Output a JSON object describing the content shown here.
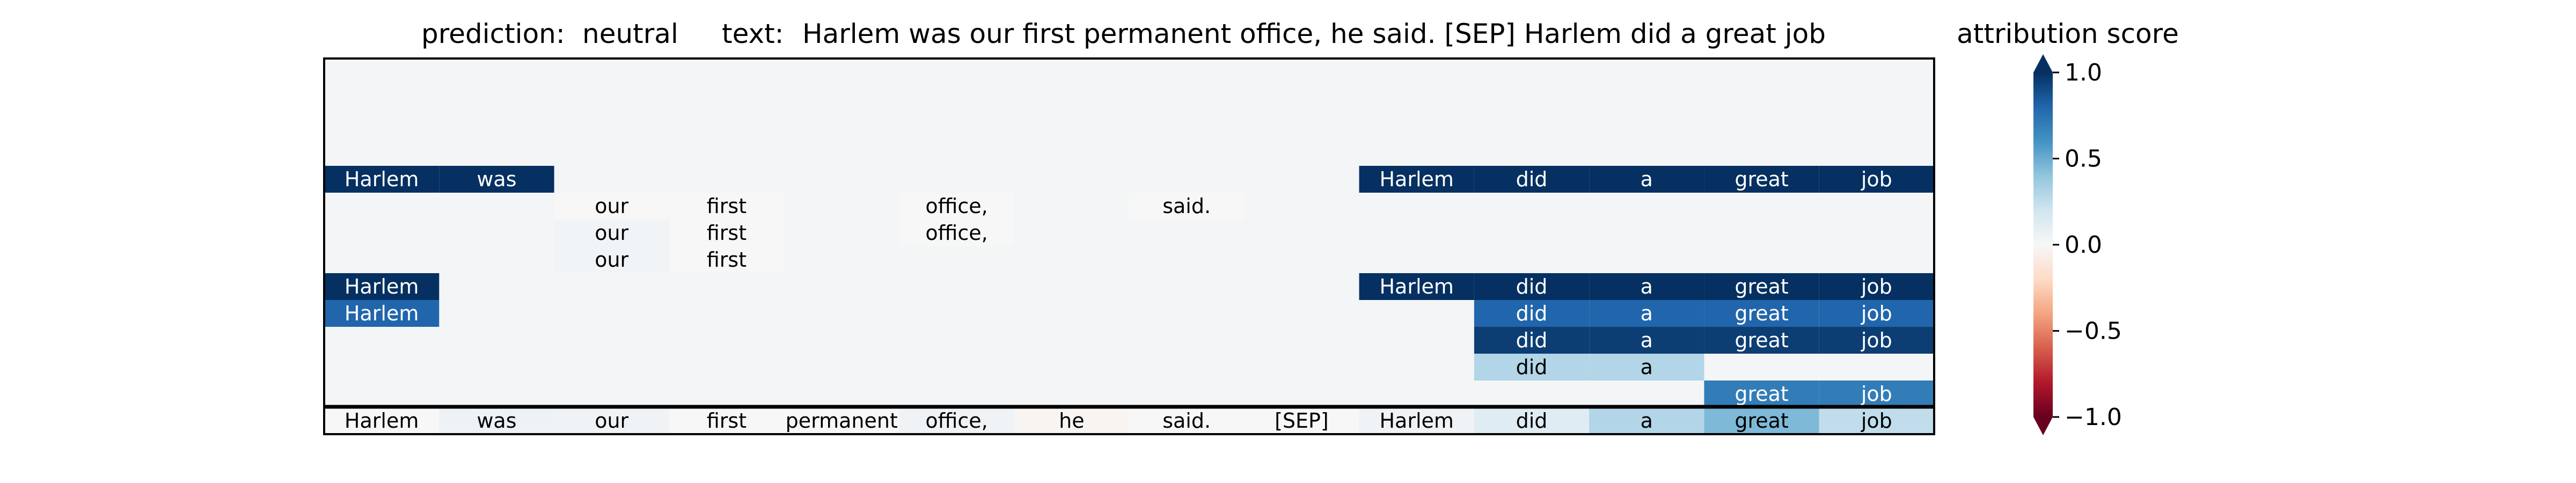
{
  "header": {
    "prediction_label": "prediction:",
    "prediction_value": "neutral",
    "text_label": "text:",
    "text_value": "Harlem was our first permanent office, he said. [SEP] Harlem did a great job"
  },
  "colorbar": {
    "title": "attribution score",
    "ticks": [
      "1.0",
      "0.5",
      "0.0",
      "−0.5",
      "−1.0"
    ],
    "tick_values": [
      1.0,
      0.5,
      0.0,
      -0.5,
      -1.0
    ],
    "colormap": "RdBu",
    "extend": "both"
  },
  "chart_data": {
    "type": "heatmap",
    "title": "attribution score",
    "tokens": [
      "Harlem",
      "was",
      "our",
      "first",
      "permanent",
      "office,",
      "he",
      "said.",
      "[SEP]",
      "Harlem",
      "did",
      "a",
      "great",
      "job"
    ],
    "vmin": -1.0,
    "vmax": 1.0,
    "background_value": 0.02,
    "rows": [
      {
        "values": [
          null,
          null,
          null,
          null,
          null,
          null,
          null,
          null,
          null,
          null,
          null,
          null,
          null,
          null
        ]
      },
      {
        "values": [
          null,
          null,
          null,
          null,
          null,
          null,
          null,
          null,
          null,
          null,
          null,
          null,
          null,
          null
        ]
      },
      {
        "values": [
          null,
          null,
          null,
          null,
          null,
          null,
          null,
          null,
          null,
          null,
          null,
          null,
          null,
          null
        ]
      },
      {
        "values": [
          null,
          null,
          null,
          null,
          null,
          null,
          null,
          null,
          null,
          null,
          null,
          null,
          null,
          null
        ]
      },
      {
        "values": [
          1.0,
          1.0,
          null,
          null,
          null,
          null,
          null,
          null,
          null,
          1.0,
          1.0,
          1.0,
          1.0,
          1.0
        ]
      },
      {
        "values": [
          null,
          null,
          0.0,
          0.0,
          null,
          0.0,
          null,
          0.0,
          null,
          null,
          null,
          null,
          null,
          null
        ]
      },
      {
        "values": [
          null,
          null,
          0.03,
          0.0,
          null,
          0.0,
          null,
          null,
          null,
          null,
          null,
          null,
          null,
          null
        ]
      },
      {
        "values": [
          null,
          null,
          0.03,
          0.0,
          null,
          null,
          null,
          null,
          null,
          null,
          null,
          null,
          null,
          null
        ]
      },
      {
        "values": [
          1.0,
          null,
          null,
          null,
          null,
          null,
          null,
          null,
          null,
          1.0,
          1.0,
          1.0,
          1.0,
          1.0
        ]
      },
      {
        "values": [
          0.8,
          null,
          null,
          null,
          null,
          null,
          null,
          null,
          null,
          null,
          0.8,
          0.8,
          0.8,
          0.8
        ]
      },
      {
        "values": [
          null,
          null,
          null,
          null,
          null,
          null,
          null,
          null,
          null,
          null,
          0.95,
          0.95,
          0.95,
          0.95
        ]
      },
      {
        "values": [
          null,
          null,
          null,
          null,
          null,
          null,
          null,
          null,
          null,
          null,
          0.3,
          0.3,
          null,
          null
        ]
      },
      {
        "values": [
          null,
          null,
          null,
          null,
          null,
          null,
          null,
          null,
          null,
          null,
          null,
          null,
          0.7,
          0.7
        ]
      },
      {
        "values": [
          0.0,
          0.06,
          0.04,
          0.0,
          0.0,
          0.04,
          -0.02,
          0.0,
          0.0,
          0.04,
          0.12,
          0.3,
          0.45,
          0.25
        ]
      }
    ]
  }
}
